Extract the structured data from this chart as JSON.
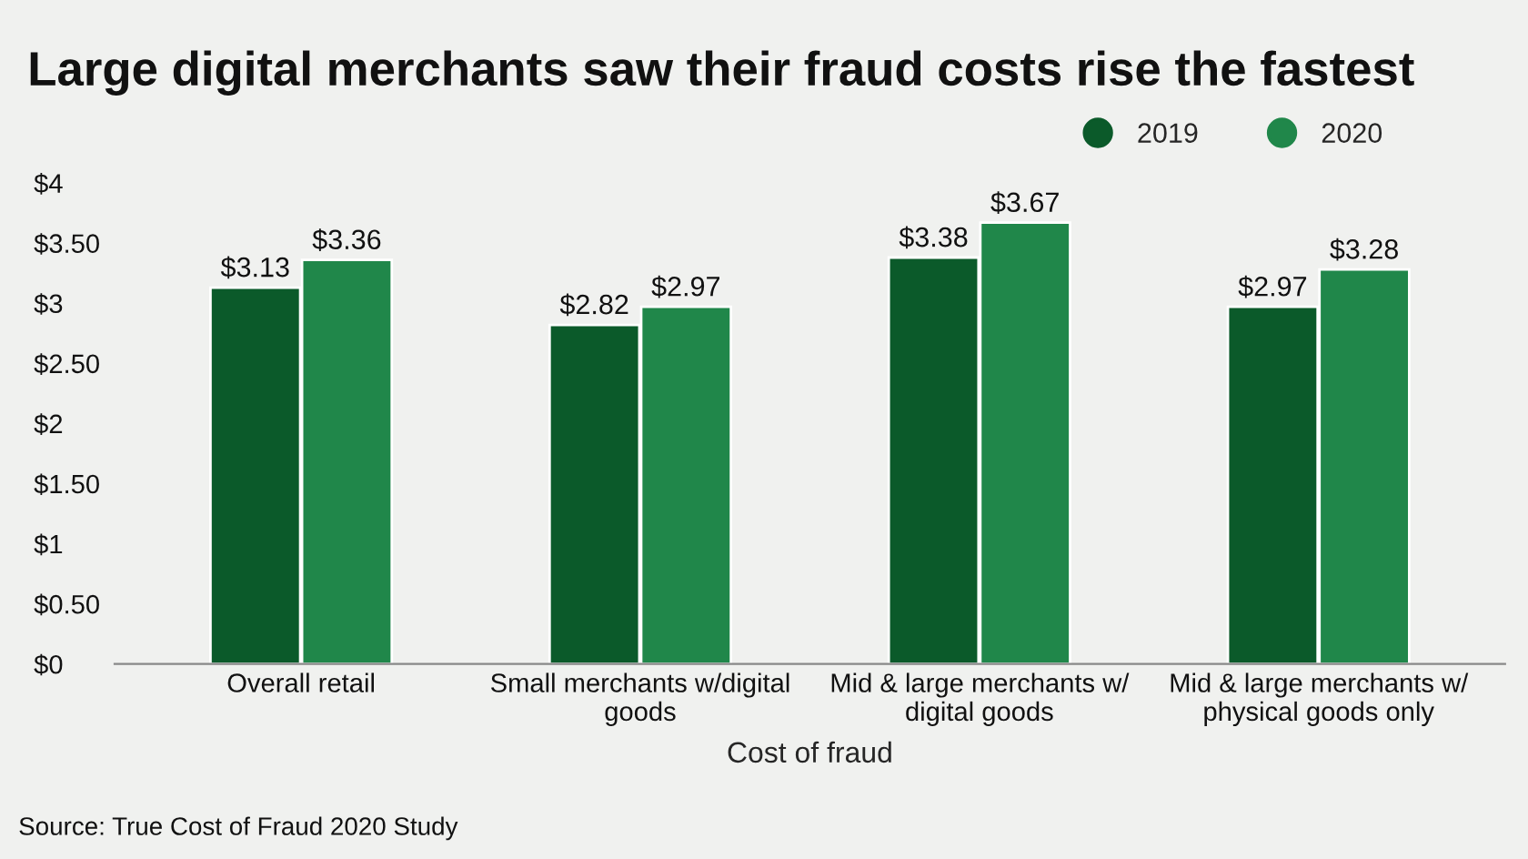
{
  "chart_data": {
    "type": "bar",
    "title": "Large digital merchants saw their fraud costs rise the fastest",
    "xlabel": "Cost of fraud",
    "categories": [
      "Overall retail",
      "Small merchants w/digital goods",
      "Mid & large merchants w/ digital goods",
      "Mid & large merchants w/ physical goods only"
    ],
    "series": [
      {
        "name": "2019",
        "color": "#0b5a2a",
        "values": [
          3.13,
          2.82,
          3.38,
          2.97
        ],
        "value_labels": [
          "$3.13",
          "$2.82",
          "$3.38",
          "$2.97"
        ]
      },
      {
        "name": "2020",
        "color": "#20874a",
        "values": [
          3.36,
          2.97,
          3.67,
          3.28
        ],
        "value_labels": [
          "$3.36",
          "$2.97",
          "$3.67",
          "$3.28"
        ]
      }
    ],
    "ylim": [
      0,
      4
    ],
    "yticks": [
      {
        "value": 0,
        "label": "$0"
      },
      {
        "value": 0.5,
        "label": "$0.50"
      },
      {
        "value": 1,
        "label": "$1"
      },
      {
        "value": 1.5,
        "label": "$1.50"
      },
      {
        "value": 2,
        "label": "$2"
      },
      {
        "value": 2.5,
        "label": "$2.50"
      },
      {
        "value": 3,
        "label": "$3"
      },
      {
        "value": 3.5,
        "label": "$3.50"
      },
      {
        "value": 4,
        "label": "$4"
      }
    ],
    "grid": false,
    "legend": "top right",
    "annotations": [
      "Source: True Cost of Fraud 2020 Study"
    ]
  }
}
